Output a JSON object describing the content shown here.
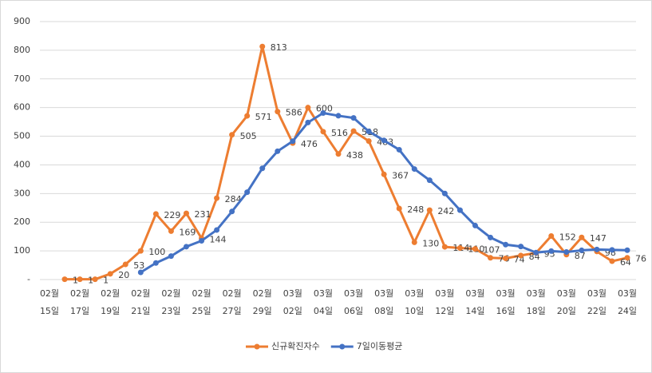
{
  "chart_data": {
    "type": "line",
    "categories": [
      "02월 15일",
      null,
      "02월 17일",
      null,
      "02월 19일",
      null,
      "02월 21일",
      null,
      "02월 23일",
      null,
      "02월 25일",
      null,
      "02월 27일",
      null,
      "02월 29일",
      null,
      "03월 02일",
      null,
      "03월 04일",
      null,
      "03월 06일",
      null,
      "03월 08일",
      null,
      "03월 10일",
      null,
      "03월 12일",
      null,
      "03월 14일",
      null,
      "03월 16일",
      null,
      "03월 18일",
      null,
      "03월 20일",
      null,
      "03월 22일",
      null,
      "03월 24일"
    ],
    "series": [
      {
        "name": "신규확진자수",
        "color": "#ED7D31",
        "values": [
          null,
          1,
          1,
          1,
          20,
          53,
          100,
          229,
          169,
          231,
          144,
          284,
          505,
          571,
          813,
          586,
          476,
          600,
          516,
          438,
          518,
          483,
          367,
          248,
          130,
          242,
          114,
          110,
          107,
          76,
          74,
          84,
          93,
          152,
          87,
          147,
          98,
          64,
          76
        ],
        "data_labels": true
      },
      {
        "name": "7일이동평균",
        "color": "#4472C4",
        "values": [
          null,
          null,
          null,
          null,
          null,
          null,
          25.1,
          57.9,
          81.9,
          114.7,
          135.1,
          172.9,
          237.4,
          304.7,
          388.1,
          447.7,
          482.7,
          547.9,
          581,
          571.4,
          563.9,
          516.7,
          485.4,
          452.9,
          385.7,
          346.6,
          300.3,
          242,
          188.3,
          146.7,
          121.9,
          115.3,
          94,
          99.4,
          96.1,
          101.9,
          105,
          103.6,
          102.4
        ],
        "data_labels": false
      }
    ],
    "ylim": [
      0,
      900
    ],
    "yticks": [
      {
        "value": 0,
        "label": "-"
      },
      100,
      200,
      300,
      400,
      500,
      600,
      700,
      800,
      900
    ],
    "grid": true,
    "legend": "bottom"
  }
}
